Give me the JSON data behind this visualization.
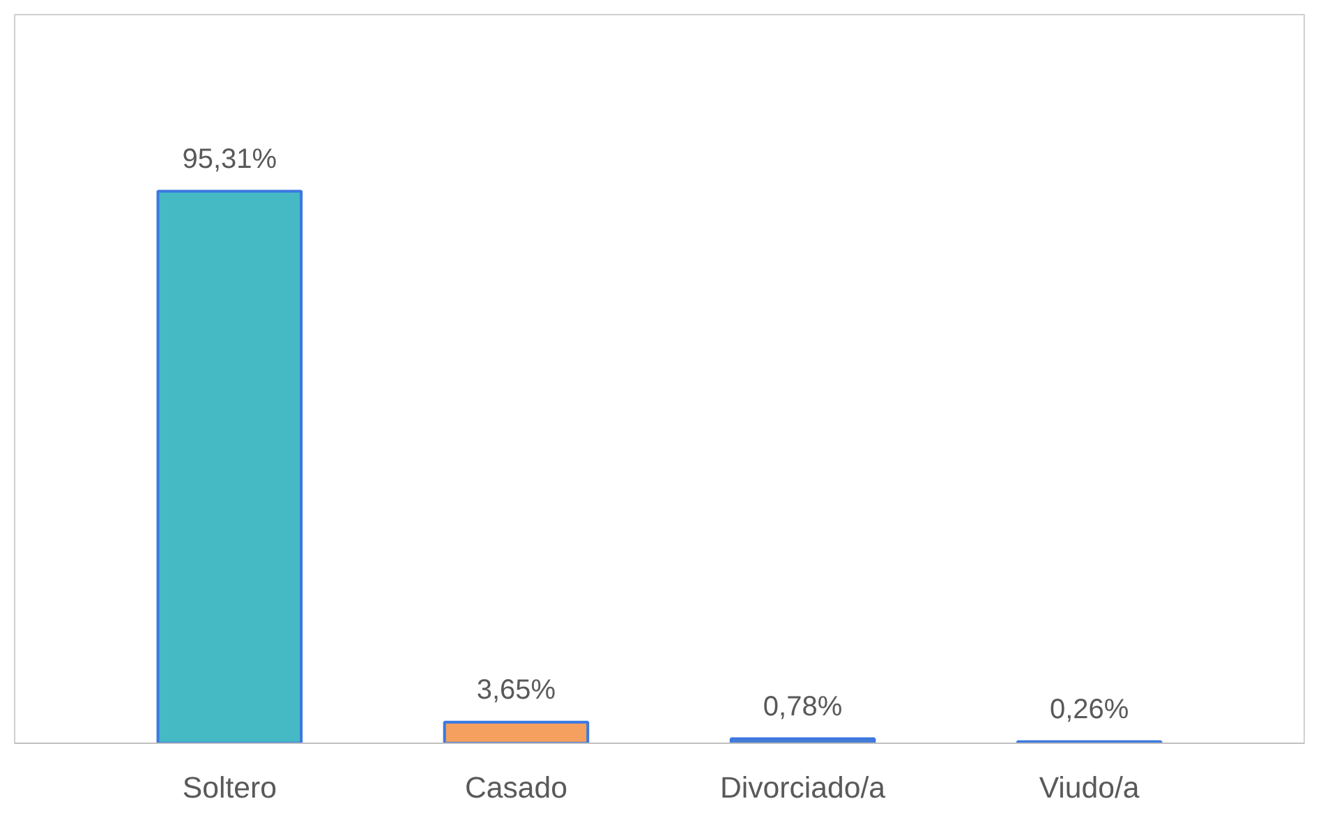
{
  "chart_data": {
    "type": "bar",
    "categories": [
      "Soltero",
      "Casado",
      "Divorciado/a",
      "Viudo/a"
    ],
    "values": [
      95.31,
      3.65,
      0.78,
      0.26
    ],
    "colors": [
      "#45b9c4",
      "#f5a05f",
      "#4a7fd0",
      "#4a7fd0"
    ],
    "value_labels": [
      "95,31%",
      "3,65%",
      "0,78%",
      "0,26%"
    ]
  }
}
